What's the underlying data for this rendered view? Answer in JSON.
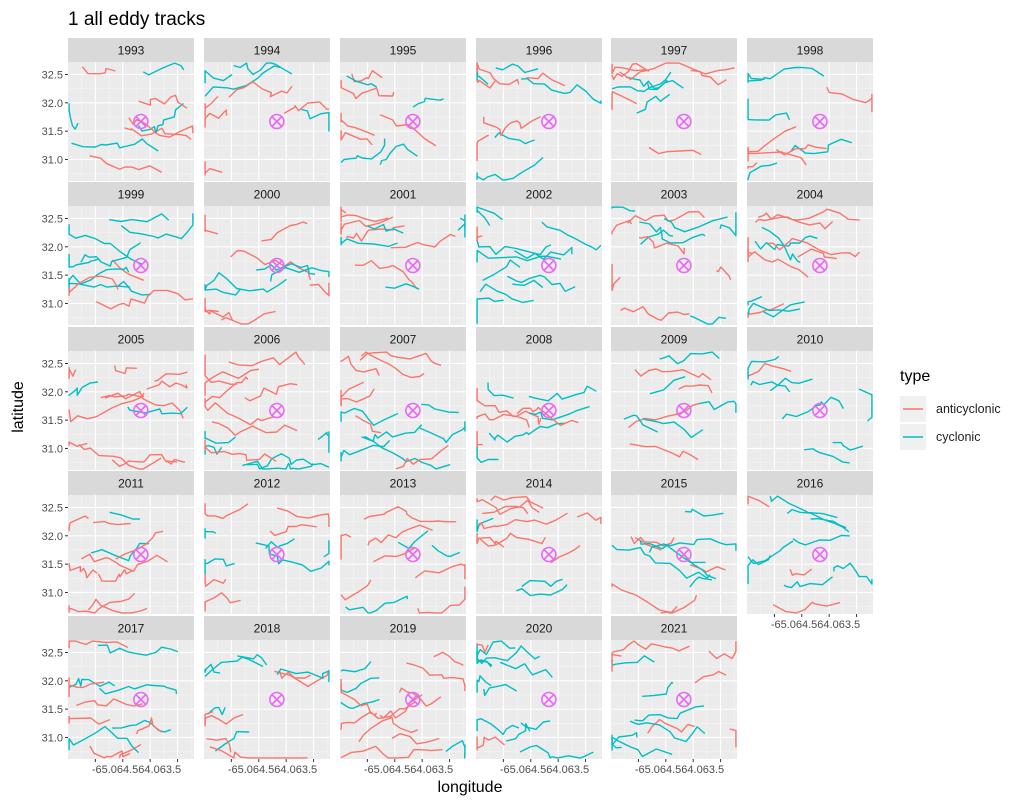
{
  "chart_data": {
    "type": "line",
    "title": "1 all eddy tracks",
    "xlabel": "longitude",
    "ylabel": "latitude",
    "x_ticks": [
      "-65.0",
      "-64.5",
      "-64.0",
      "-63.5"
    ],
    "x_tick_labels_as_printed": "-65.064.564.063.5",
    "y_ticks": [
      "31.0",
      "31.5",
      "32.0",
      "32.5"
    ],
    "xlim": [
      -65.5,
      -63.2
    ],
    "ylim": [
      30.62,
      32.72
    ],
    "grid": true,
    "panels": [
      "1993",
      "1994",
      "1995",
      "1996",
      "1997",
      "1998",
      "1999",
      "2000",
      "2001",
      "2002",
      "2003",
      "2004",
      "2005",
      "2006",
      "2007",
      "2008",
      "2009",
      "2010",
      "2011",
      "2012",
      "2013",
      "2014",
      "2015",
      "2016",
      "2017",
      "2018",
      "2019",
      "2020",
      "2021"
    ],
    "legend": {
      "title": "type",
      "placement": "right",
      "entries": [
        {
          "label": "anticyclonic",
          "color": "#F8766D"
        },
        {
          "label": "cyclonic",
          "color": "#00BFC4"
        }
      ]
    },
    "station_marker": {
      "x": -64.17,
      "y": 31.67,
      "color": "#E76BF3",
      "symbol": "circled-x"
    },
    "series": [
      {
        "name": "anticyclonic",
        "color": "#F8766D"
      },
      {
        "name": "cyclonic",
        "color": "#00BFC4"
      }
    ],
    "note_tracks": "Tracks per panel are many irregular eddy trajectories within the axis ranges."
  }
}
